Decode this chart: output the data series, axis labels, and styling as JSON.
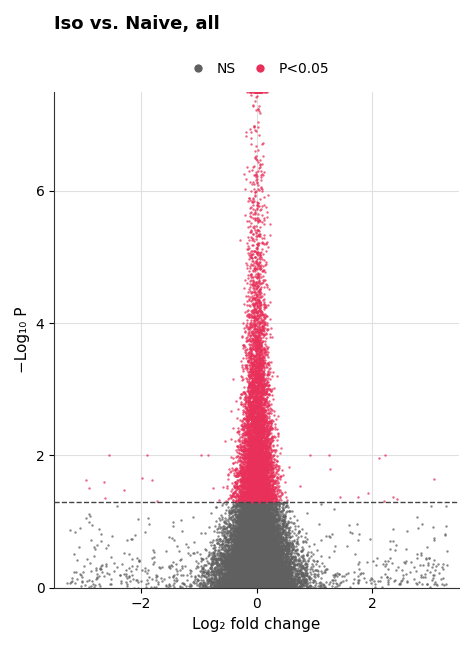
{
  "title": "Iso vs. Naive, all",
  "xlabel": "Log₂ fold change",
  "ylabel": "−Log₁₀ P",
  "ns_color": "#606060",
  "sig_color": "#E8305A",
  "ns_label": "NS",
  "sig_label": "P<0.05",
  "dashed_line_y": 1.301,
  "xlim": [
    -3.5,
    3.5
  ],
  "ylim": [
    0,
    7.5
  ],
  "xticks": [
    -2,
    0,
    2
  ],
  "yticks": [
    0,
    2,
    4,
    6
  ],
  "n_points": 20000,
  "seed": 123,
  "background_color": "#ffffff",
  "grid_color": "#e0e0e0",
  "title_fontsize": 13,
  "label_fontsize": 11,
  "tick_fontsize": 10,
  "legend_fontsize": 10,
  "point_size": 3,
  "point_alpha": 0.75
}
